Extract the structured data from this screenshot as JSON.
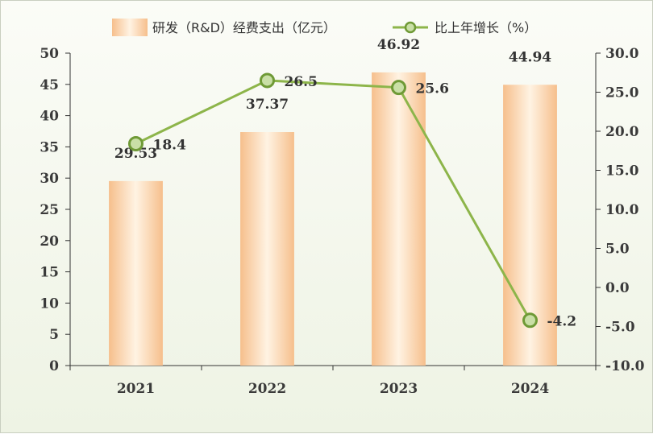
{
  "chart_data": {
    "type": "bar+line",
    "categories": [
      "2021",
      "2022",
      "2023",
      "2024"
    ],
    "series": [
      {
        "name": "研发（R&D）经费支出（亿元）",
        "type": "bar",
        "axis": "left",
        "values": [
          29.53,
          37.37,
          46.92,
          44.94
        ],
        "labels": [
          "29.53",
          "37.37",
          "46.92",
          "44.94"
        ]
      },
      {
        "name": "比上年增长（%）",
        "type": "line",
        "axis": "right",
        "values": [
          18.4,
          26.5,
          25.6,
          -4.2
        ],
        "labels": [
          "18.4",
          "26.5",
          "25.6",
          "-4.2"
        ]
      }
    ],
    "left_axis": {
      "min": 0,
      "max": 50,
      "step": 5,
      "ticks": [
        "0",
        "5",
        "10",
        "15",
        "20",
        "25",
        "30",
        "35",
        "40",
        "45",
        "50"
      ]
    },
    "right_axis": {
      "min": -10,
      "max": 30,
      "step": 5,
      "ticks": [
        "-10.0",
        "-5.0",
        "0.0",
        "5.0",
        "10.0",
        "15.0",
        "20.0",
        "25.0",
        "30.0"
      ]
    },
    "legend_position": "top",
    "grid": false,
    "colors": {
      "bar_edge": "#f6c090",
      "bar_center": "#fff4e6",
      "line": "#8db54a",
      "marker_fill": "#c9dfa6",
      "marker_stroke": "#6f9a36",
      "axis": "#333333"
    }
  }
}
